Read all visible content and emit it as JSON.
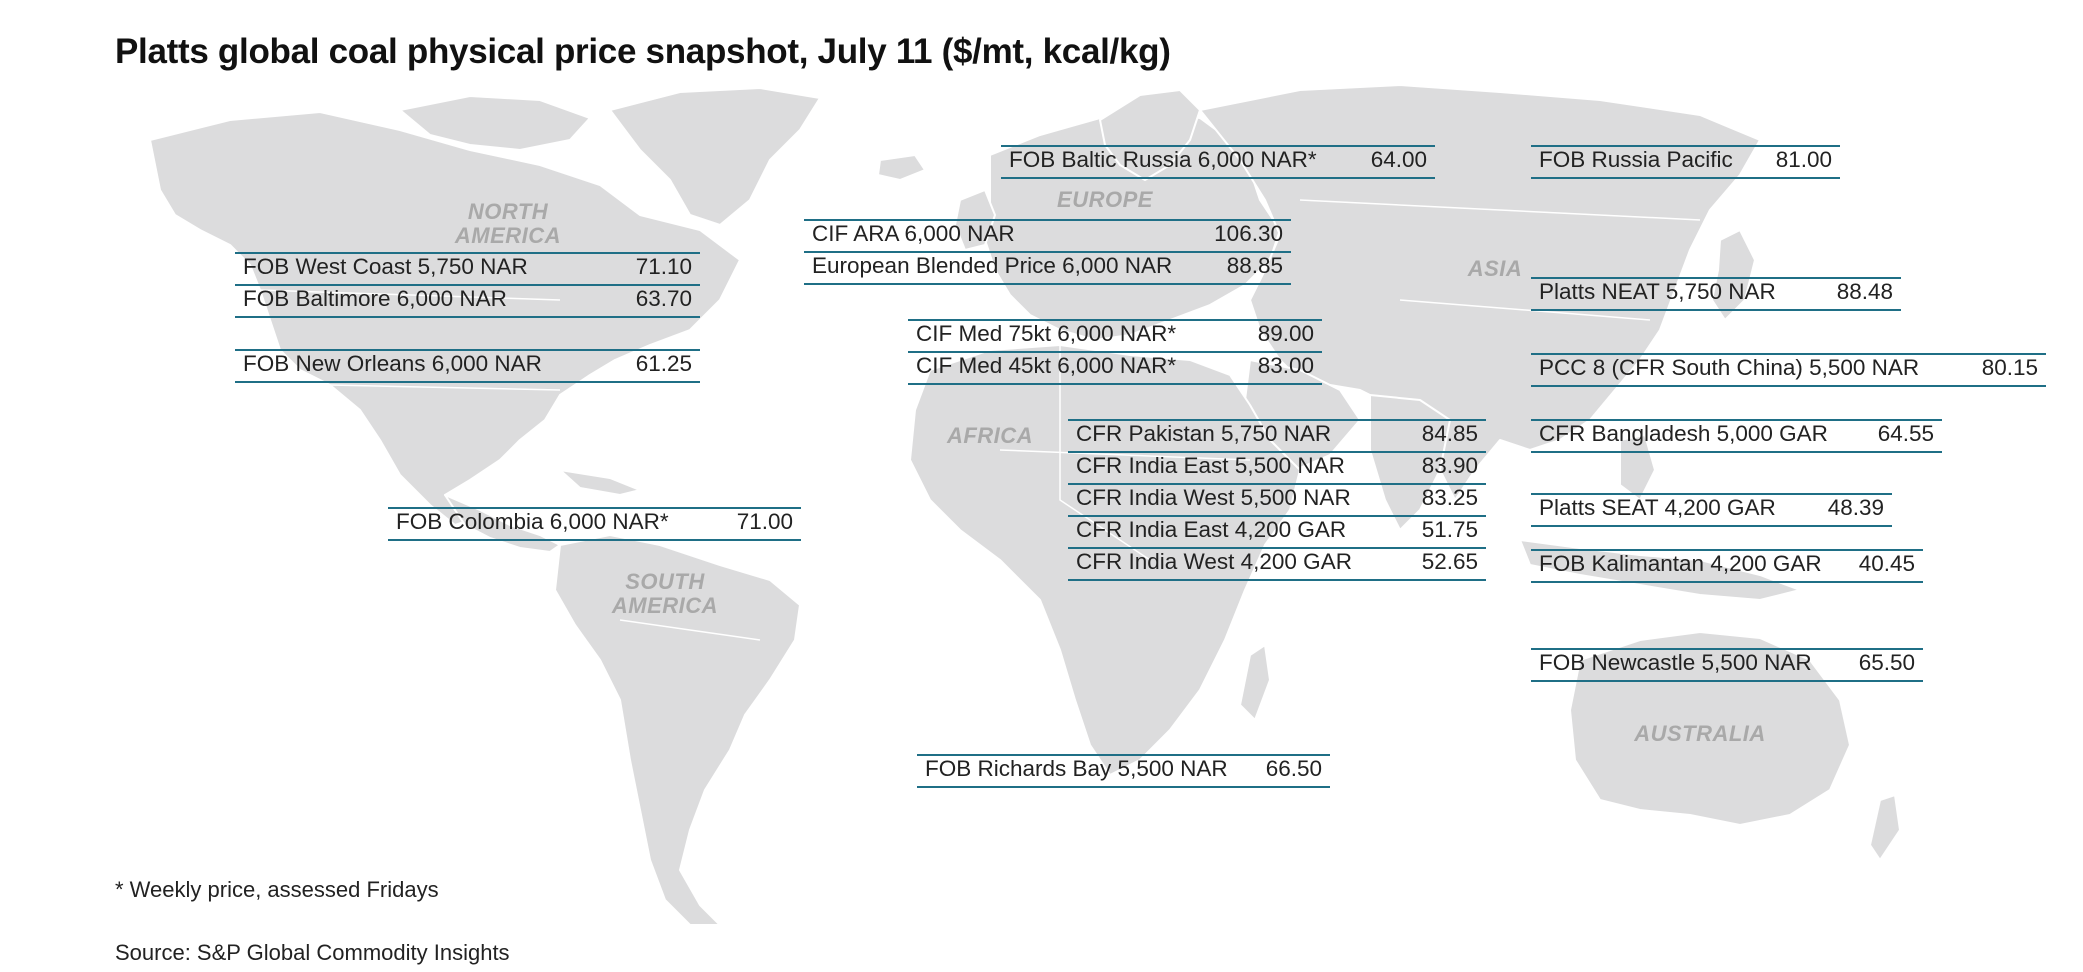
{
  "title": "Platts global coal physical price snapshot, July 11 ($/mt, kcal/kg)",
  "footnote": "* Weekly price, assessed Fridays",
  "source": "Source: S&P Global Commodity Insights",
  "colors": {
    "map_land": "#dcdcdd",
    "rule": "#1f6f86",
    "region_label": "#a9a9a9"
  },
  "regions": {
    "north_america_1": "NORTH",
    "north_america_2": "AMERICA",
    "south_america_1": "SOUTH",
    "south_america_2": "AMERICA",
    "europe": "EUROPE",
    "africa": "AFRICA",
    "asia": "ASIA",
    "australia": "AUSTRALIA"
  },
  "prices": {
    "us": [
      {
        "label": "FOB West Coast 5,750 NAR",
        "value": "71.10"
      },
      {
        "label": "FOB Baltimore 6,000 NAR",
        "value": "63.70"
      }
    ],
    "new_orleans": {
      "label": "FOB New Orleans 6,000 NAR",
      "value": "61.25"
    },
    "colombia": {
      "label": "FOB Colombia 6,000 NAR*",
      "value": "71.00"
    },
    "baltic": {
      "label": "FOB Baltic Russia 6,000 NAR*",
      "value": "64.00"
    },
    "europe": [
      {
        "label": "CIF ARA 6,000 NAR",
        "value": "106.30"
      },
      {
        "label": "European Blended Price 6,000 NAR",
        "value": "88.85"
      }
    ],
    "med": [
      {
        "label": "CIF Med 75kt 6,000 NAR*",
        "value": "89.00"
      },
      {
        "label": "CIF Med 45kt 6,000 NAR*",
        "value": "83.00"
      }
    ],
    "india": [
      {
        "label": "CFR Pakistan 5,750 NAR",
        "value": "84.85"
      },
      {
        "label": "CFR India East 5,500 NAR",
        "value": "83.90"
      },
      {
        "label": "CFR India West 5,500 NAR",
        "value": "83.25"
      },
      {
        "label": "CFR India East 4,200 GAR",
        "value": "51.75"
      },
      {
        "label": "CFR India West 4,200 GAR",
        "value": "52.65"
      }
    ],
    "richards_bay": {
      "label": "FOB Richards Bay 5,500 NAR",
      "value": "66.50"
    },
    "russia_pacific": {
      "label": "FOB Russia Pacific",
      "value": "81.00"
    },
    "neat": {
      "label": "Platts NEAT 5,750 NAR",
      "value": "88.48"
    },
    "pcc8": {
      "label": "PCC 8 (CFR South China) 5,500 NAR",
      "value": "80.15"
    },
    "bangladesh": {
      "label": "CFR Bangladesh 5,000 GAR",
      "value": "64.55"
    },
    "seat": {
      "label": "Platts SEAT 4,200 GAR",
      "value": "48.39"
    },
    "kalimantan": {
      "label": "FOB Kalimantan 4,200 GAR",
      "value": "40.45"
    },
    "newcastle": {
      "label": "FOB Newcastle 5,500 NAR",
      "value": "65.50"
    }
  }
}
